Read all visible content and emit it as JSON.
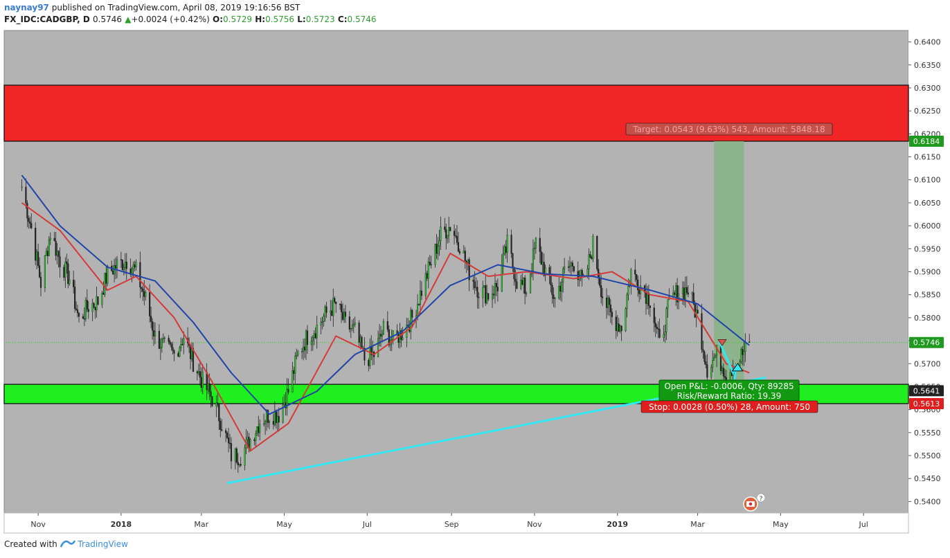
{
  "header": {
    "user": "naynay97",
    "published": "published on TradingView.com, April 08, 2019 19:16:56 BST",
    "symbol": "FX_IDC:CADGBP, D",
    "last": "0.5746",
    "change_arrow": "▲",
    "change": "+0.0024 (+0.42%)",
    "o_label": "O:",
    "o": "0.5729",
    "h_label": "H:",
    "h": "0.5756",
    "l_label": "L:",
    "l": "0.5723",
    "c_label": "C:",
    "c": "0.5746"
  },
  "footer": {
    "created_with": "Created with",
    "brand": "TradingView",
    "brand_icon": "tradingview-logo-icon"
  },
  "colors": {
    "background": "#b3b3b3",
    "resistance_zone": "#f12525",
    "support_zone": "#1fee1f",
    "candle_up": "#2ec52e",
    "candle_down": "#222222",
    "ma_fast": "#d43a3a",
    "ma_slow": "#1f45a8",
    "trendline": "#33e6f2",
    "target_zone": "#88b388",
    "price_line": "#1fd11f"
  },
  "annotations": {
    "target": "Target: 0.0543 (9.63%) 543, Amount: 5848.18",
    "open_pl": "Open P&L: -0.0006, Qty: 89285",
    "risk_reward": "Risk/Reward Ratio: 19.39",
    "stop": "Stop: 0.0028 (0.50%) 28, Amount: 750",
    "event_icon": "canada-flag-event-icon",
    "event_count": "?"
  },
  "chart_data": {
    "type": "candlestick",
    "title": "FX_IDC:CADGBP, D",
    "x_labels": [
      "Nov",
      "2018",
      "Mar",
      "May",
      "Jul",
      "Sep",
      "Nov",
      "2019",
      "Mar",
      "May",
      "Jul"
    ],
    "y_ticks": [
      "0.6400",
      "0.6350",
      "0.6300",
      "0.6250",
      "0.6200",
      "0.6150",
      "0.6100",
      "0.6050",
      "0.6000",
      "0.5950",
      "0.5900",
      "0.5850",
      "0.5800",
      "0.5750",
      "0.5700",
      "0.5650",
      "0.5600",
      "0.5550",
      "0.5500",
      "0.5450",
      "0.5400"
    ],
    "ylim": [
      0.5375,
      0.6425
    ],
    "price_badges": [
      {
        "label": "0.6184",
        "value": 0.6184,
        "color": "#1f9a1f"
      },
      {
        "label": "0.5746",
        "value": 0.5746,
        "color": "#1f9a1f"
      },
      {
        "label": "0.5641",
        "value": 0.5641,
        "color": "#222222"
      },
      {
        "label": "0.5613",
        "value": 0.5613,
        "color": "#e01e1e"
      }
    ],
    "zones": [
      {
        "name": "resistance",
        "from": 0.6184,
        "to": 0.6306
      },
      {
        "name": "support",
        "from": 0.5613,
        "to": 0.5655
      }
    ],
    "current_price": 0.5746,
    "price_path": [
      [
        "2017-10-20",
        0.6085
      ],
      [
        "2017-10-27",
        0.5995
      ],
      [
        "2017-11-03",
        0.5875
      ],
      [
        "2017-11-10",
        0.5985
      ],
      [
        "2017-11-17",
        0.5925
      ],
      [
        "2017-11-24",
        0.5885
      ],
      [
        "2017-12-01",
        0.5795
      ],
      [
        "2017-12-08",
        0.5825
      ],
      [
        "2017-12-15",
        0.5835
      ],
      [
        "2017-12-22",
        0.5895
      ],
      [
        "2017-12-29",
        0.5915
      ],
      [
        "2018-01-05",
        0.5925
      ],
      [
        "2018-01-12",
        0.59
      ],
      [
        "2018-01-19",
        0.584
      ],
      [
        "2018-01-26",
        0.576
      ],
      [
        "2018-02-02",
        0.5735
      ],
      [
        "2018-02-09",
        0.572
      ],
      [
        "2018-02-16",
        0.576
      ],
      [
        "2018-02-23",
        0.5705
      ],
      [
        "2018-03-02",
        0.566
      ],
      [
        "2018-03-09",
        0.5625
      ],
      [
        "2018-03-16",
        0.557
      ],
      [
        "2018-03-23",
        0.55
      ],
      [
        "2018-03-30",
        0.55
      ],
      [
        "2018-04-06",
        0.5535
      ],
      [
        "2018-04-13",
        0.5575
      ],
      [
        "2018-04-20",
        0.559
      ],
      [
        "2018-04-27",
        0.559
      ],
      [
        "2018-05-04",
        0.564
      ],
      [
        "2018-05-11",
        0.572
      ],
      [
        "2018-05-18",
        0.576
      ],
      [
        "2018-05-25",
        0.578
      ],
      [
        "2018-06-01",
        0.581
      ],
      [
        "2018-06-08",
        0.583
      ],
      [
        "2018-06-15",
        0.5785
      ],
      [
        "2018-06-22",
        0.577
      ],
      [
        "2018-06-29",
        0.571
      ],
      [
        "2018-07-06",
        0.572
      ],
      [
        "2018-07-13",
        0.5775
      ],
      [
        "2018-07-20",
        0.575
      ],
      [
        "2018-07-27",
        0.577
      ],
      [
        "2018-08-03",
        0.58
      ],
      [
        "2018-08-10",
        0.586
      ],
      [
        "2018-08-17",
        0.592
      ],
      [
        "2018-08-24",
        0.598
      ],
      [
        "2018-08-31",
        0.6
      ],
      [
        "2018-09-07",
        0.596
      ],
      [
        "2018-09-14",
        0.59
      ],
      [
        "2018-09-21",
        0.586
      ],
      [
        "2018-09-28",
        0.585
      ],
      [
        "2018-10-05",
        0.587
      ],
      [
        "2018-10-12",
        0.596
      ],
      [
        "2018-10-19",
        0.588
      ],
      [
        "2018-10-26",
        0.586
      ],
      [
        "2018-11-02",
        0.596
      ],
      [
        "2018-11-09",
        0.59
      ],
      [
        "2018-11-16",
        0.584
      ],
      [
        "2018-11-23",
        0.59
      ],
      [
        "2018-11-30",
        0.592
      ],
      [
        "2018-12-07",
        0.587
      ],
      [
        "2018-12-14",
        0.596
      ],
      [
        "2018-12-21",
        0.585
      ],
      [
        "2018-12-28",
        0.58
      ],
      [
        "2019-01-04",
        0.578
      ],
      [
        "2019-01-11",
        0.59
      ],
      [
        "2019-01-18",
        0.587
      ],
      [
        "2019-01-25",
        0.584
      ],
      [
        "2019-02-01",
        0.574
      ],
      [
        "2019-02-08",
        0.583
      ],
      [
        "2019-02-15",
        0.586
      ],
      [
        "2019-02-22",
        0.586
      ],
      [
        "2019-03-01",
        0.58
      ],
      [
        "2019-03-08",
        0.569
      ],
      [
        "2019-03-15",
        0.572
      ],
      [
        "2019-03-22",
        0.568
      ],
      [
        "2019-03-29",
        0.57
      ],
      [
        "2019-04-05",
        0.573
      ],
      [
        "2019-04-08",
        0.5746
      ]
    ],
    "series": [
      {
        "name": "",
        "type": "sma",
        "color": "#d43a3a",
        "points": [
          [
            "2017-10-20",
            0.605
          ],
          [
            "2017-11-17",
            0.599
          ],
          [
            "2017-12-22",
            0.586
          ],
          [
            "2018-01-12",
            0.589
          ],
          [
            "2018-02-09",
            0.58
          ],
          [
            "2018-03-09",
            0.566
          ],
          [
            "2018-04-06",
            0.551
          ],
          [
            "2018-05-04",
            0.557
          ],
          [
            "2018-06-08",
            0.576
          ],
          [
            "2018-07-06",
            0.572
          ],
          [
            "2018-08-03",
            0.578
          ],
          [
            "2018-08-31",
            0.594
          ],
          [
            "2018-09-28",
            0.589
          ],
          [
            "2018-10-26",
            0.59
          ],
          [
            "2018-11-30",
            0.5885
          ],
          [
            "2018-12-28",
            0.59
          ],
          [
            "2019-01-25",
            0.585
          ],
          [
            "2019-02-22",
            0.5835
          ],
          [
            "2019-03-22",
            0.57
          ],
          [
            "2019-04-08",
            0.568
          ]
        ]
      },
      {
        "name": "",
        "type": "sma",
        "color": "#1f45a8",
        "points": [
          [
            "2017-10-20",
            0.611
          ],
          [
            "2017-11-17",
            0.6
          ],
          [
            "2017-12-22",
            0.591
          ],
          [
            "2018-01-26",
            0.588
          ],
          [
            "2018-02-23",
            0.579
          ],
          [
            "2018-03-23",
            0.568
          ],
          [
            "2018-04-20",
            0.559
          ],
          [
            "2018-05-25",
            0.564
          ],
          [
            "2018-06-22",
            0.572
          ],
          [
            "2018-07-27",
            0.577
          ],
          [
            "2018-08-31",
            0.587
          ],
          [
            "2018-10-05",
            0.5915
          ],
          [
            "2018-11-09",
            0.5895
          ],
          [
            "2018-12-14",
            0.589
          ],
          [
            "2019-01-25",
            0.586
          ],
          [
            "2019-03-01",
            0.583
          ],
          [
            "2019-04-08",
            0.574
          ]
        ]
      }
    ],
    "trendline": {
      "from": [
        "2018-03-20",
        0.544
      ],
      "to": [
        "2019-04-20",
        0.567
      ]
    },
    "position": {
      "type": "long",
      "start": "2019-03-13",
      "end": "2019-04-04",
      "entry": 0.5641,
      "target": 0.6184,
      "stop": 0.5613
    }
  }
}
